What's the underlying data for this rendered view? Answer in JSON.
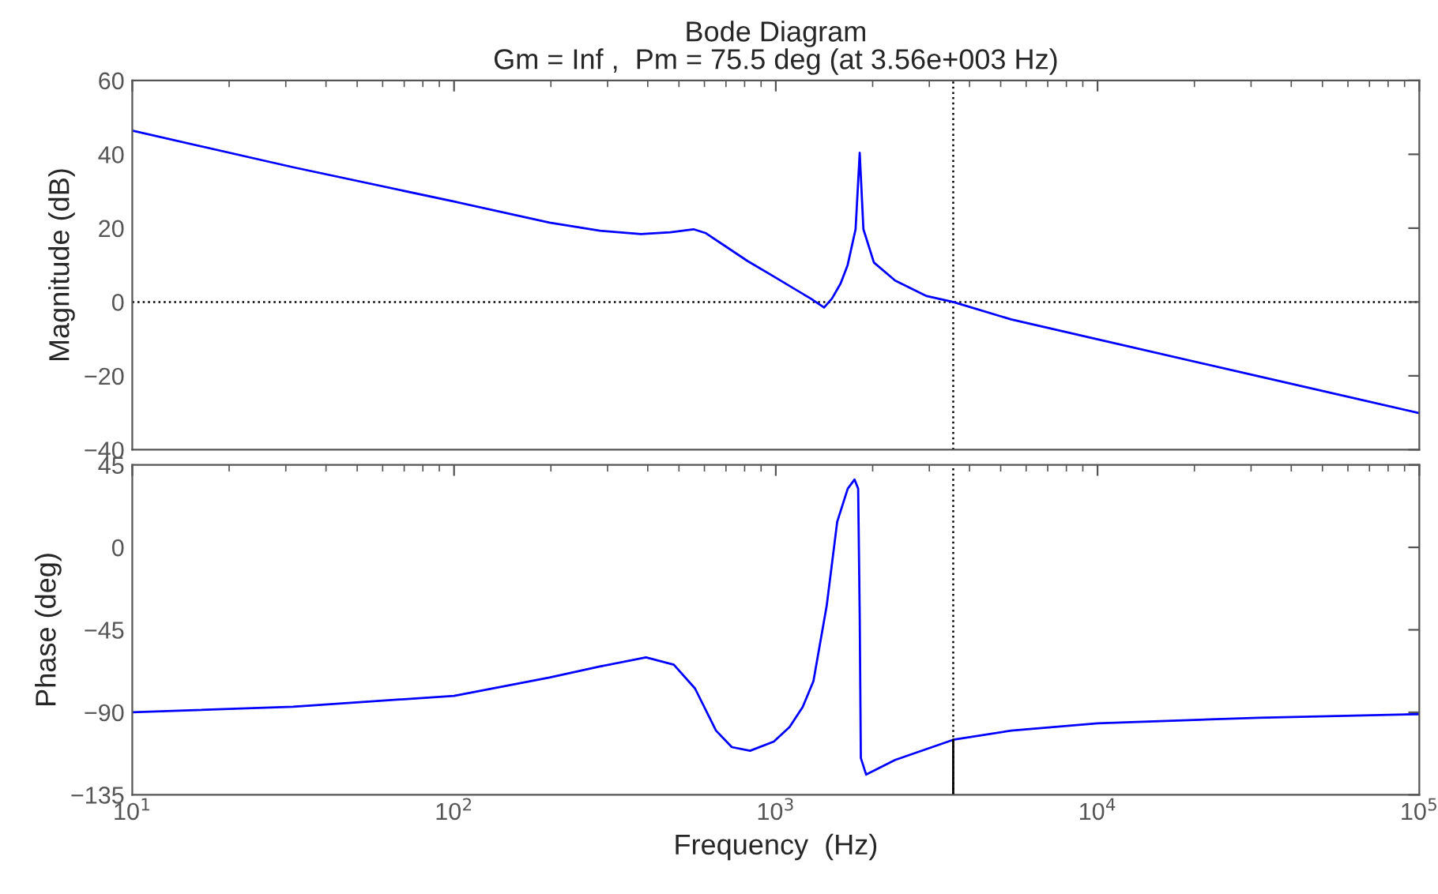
{
  "chart_data": [
    {
      "type": "line",
      "title": "Bode Diagram",
      "subtitle": "Gm = Inf ,  Pm = 75.5 deg (at 3.56e+003 Hz)",
      "ylabel": "Magnitude (dB)",
      "log": "x",
      "tick_labels": "y",
      "xlim": [
        10,
        100000
      ],
      "xticks": [
        {
          "value": 10,
          "label": null
        },
        {
          "value": 100,
          "label": null
        },
        {
          "value": 1000,
          "label": null
        },
        {
          "value": 10000,
          "label": null
        },
        {
          "value": 100000,
          "label": null
        }
      ],
      "ylim": [
        -40,
        60
      ],
      "yticks": [
        {
          "value": -40,
          "label": "−40"
        },
        {
          "value": -20,
          "label": "−20"
        },
        0,
        20,
        40,
        60
      ],
      "series": [
        {
          "color": "#0000ff",
          "x": [
            10,
            31.6,
            100,
            198,
            284,
            381,
            470,
            555,
            604,
            700,
            817,
            986,
            1285,
            1413,
            1494,
            1590,
            1672,
            1770,
            1823,
            1872,
            2018,
            2349,
            2945,
            3560,
            5383,
            10000,
            31600,
            100000
          ],
          "values": [
            46.4,
            36.5,
            27.2,
            21.5,
            19.3,
            18.4,
            18.9,
            19.7,
            18.7,
            15.0,
            11.1,
            6.9,
            0.9,
            -1.5,
            0.9,
            5.0,
            10,
            19.7,
            40.4,
            19.7,
            10.7,
            5.8,
            1.6,
            0,
            -4.7,
            -10.1,
            -20.1,
            -30.1
          ]
        }
      ],
      "ref_lines": [
        {
          "axis": "y",
          "value": 0,
          "color": "#000000",
          "line_style": "dotted"
        },
        {
          "axis": "x",
          "value": 3560,
          "color": "#000000",
          "line_style": "dotted"
        }
      ]
    },
    {
      "type": "line",
      "xlabel": "Frequency  (Hz)",
      "ylabel": "Phase (deg)",
      "log": "x",
      "xlim": [
        10,
        100000
      ],
      "xticks": [
        {
          "value": 10,
          "label": "10$^{1}$"
        },
        {
          "value": 100,
          "label": "10$^{2}$"
        },
        {
          "value": 1000,
          "label": "10$^{3}$"
        },
        {
          "value": 10000,
          "label": "10$^{4}$"
        },
        {
          "value": 100000,
          "label": "10$^{5}$"
        }
      ],
      "ylim": [
        -135,
        45
      ],
      "yticks": [
        {
          "value": -135,
          "label": "−135"
        },
        {
          "value": -90,
          "label": "−90"
        },
        {
          "value": -45,
          "label": "−45"
        },
        0,
        45
      ],
      "series": [
        {
          "color": "#0000ff",
          "x": [
            10,
            31.6,
            100,
            198,
            284,
            395,
            482,
            561,
            652,
            730,
            832,
            986,
            1104,
            1213,
            1309,
            1439,
            1552,
            1673,
            1757,
            1803,
            1823,
            1838,
            1909,
            2349,
            3560,
            5383,
            10000,
            31600,
            100000
          ],
          "values": [
            -90,
            -87,
            -81,
            -71,
            -65,
            -60,
            -64,
            -77,
            -100,
            -109,
            -111,
            -106,
            -98,
            -87,
            -73,
            -32,
            14,
            32,
            37,
            32,
            -37,
            -115,
            -124,
            -116,
            -105,
            -100,
            -96,
            -93,
            -91
          ]
        },
        {
          "color": "#000000",
          "x": [
            3560,
            3560
          ],
          "values": [
            -135,
            -105
          ]
        }
      ],
      "ref_lines": [
        {
          "axis": "x",
          "value": 3560,
          "color": "#000000",
          "line_style": "dotted"
        }
      ]
    }
  ]
}
